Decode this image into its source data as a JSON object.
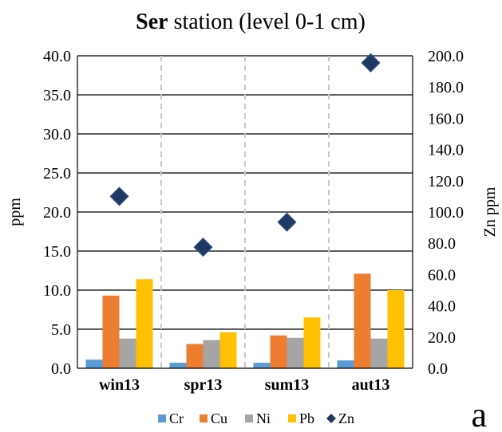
{
  "chart_data": {
    "type": "bar",
    "title_bold": "Ser",
    "title_rest": " station (level 0-1 cm)",
    "categories": [
      "win13",
      "spr13",
      "sum13",
      "aut13"
    ],
    "ylabel": "ppm",
    "y2label": "Zn ppm",
    "ylim": [
      0,
      40
    ],
    "y2lim": [
      0,
      200
    ],
    "yticks": [
      "0.0",
      "5.0",
      "10.0",
      "15.0",
      "20.0",
      "25.0",
      "30.0",
      "35.0",
      "40.0"
    ],
    "y2ticks": [
      "0.0",
      "20.0",
      "40.0",
      "60.0",
      "80.0",
      "100.0",
      "120.0",
      "140.0",
      "160.0",
      "180.0",
      "200.0"
    ],
    "grid": "horizontal",
    "series": [
      {
        "name": "Cr",
        "kind": "bar",
        "axis": "left",
        "color": "#5b9bd5",
        "values": [
          1.1,
          0.7,
          0.7,
          1.0
        ]
      },
      {
        "name": "Cu",
        "kind": "bar",
        "axis": "left",
        "color": "#ed7d31",
        "values": [
          9.3,
          3.1,
          4.2,
          12.1
        ]
      },
      {
        "name": "Ni",
        "kind": "bar",
        "axis": "left",
        "color": "#a5a5a5",
        "values": [
          3.8,
          3.6,
          3.9,
          3.8
        ]
      },
      {
        "name": "Pb",
        "kind": "bar",
        "axis": "left",
        "color": "#ffc000",
        "values": [
          11.4,
          4.6,
          6.5,
          10.0
        ]
      },
      {
        "name": "Zn",
        "kind": "marker",
        "axis": "right",
        "color": "#1f3864",
        "values": [
          110,
          77.5,
          93.5,
          195.5
        ]
      }
    ],
    "legend_position": "bottom",
    "panel_label": "a"
  }
}
